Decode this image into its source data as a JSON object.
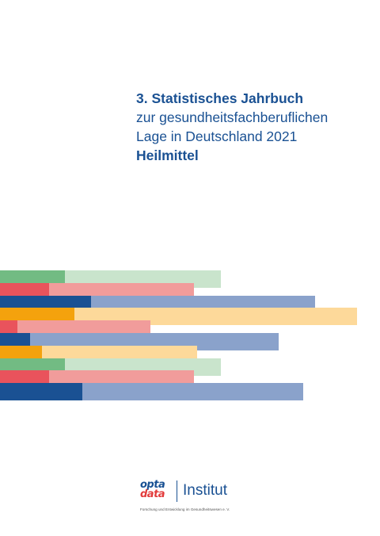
{
  "cover": {
    "title_line1": "3. Statistisches Jahrbuch",
    "title_line2": "zur gesundheitsfachberuflichen",
    "title_line3": "Lage in Deutschland 2021",
    "title_line4": "Heilmittel"
  },
  "logo": {
    "mark_top": "opta",
    "mark_bottom": "data",
    "name": "Institut",
    "tagline": "Forschung und Entwicklung im Gesundheitswesen e. V."
  },
  "colors": {
    "title": "#1a5193",
    "green_dark": "#72bb83",
    "green_light": "#c9e4cc",
    "red_dark": "#e9535c",
    "red_light": "#f19c9b",
    "blue_dark": "#1a5193",
    "blue_light": "#8aa2cb",
    "orange_dark": "#f4a20d",
    "orange_light": "#fdd99a"
  },
  "decor_bars": [
    {
      "dark": "#72bb83",
      "light": "#c9e4cc",
      "dark_end": 82,
      "light_end": 279
    },
    {
      "dark": "#e9535c",
      "light": "#f19c9b",
      "dark_end": 62,
      "light_end": 245
    },
    {
      "dark": "#1a5193",
      "light": "#8aa2cb",
      "dark_end": 115,
      "light_end": 398
    },
    {
      "dark": "#f4a20d",
      "light": "#fdd99a",
      "dark_end": 94,
      "light_end": 451
    },
    {
      "dark": "#e9535c",
      "light": "#f19c9b",
      "dark_end": 22,
      "light_end": 190
    },
    {
      "dark": "#1a5193",
      "light": "#8aa2cb",
      "dark_end": 38,
      "light_end": 352
    },
    {
      "dark": "#f4a20d",
      "light": "#fdd99a",
      "dark_end": 53,
      "light_end": 249
    },
    {
      "dark": "#72bb83",
      "light": "#c9e4cc",
      "dark_end": 82,
      "light_end": 279
    },
    {
      "dark": "#e9535c",
      "light": "#f19c9b",
      "dark_end": 62,
      "light_end": 245
    },
    {
      "dark": "#1a5193",
      "light": "#8aa2cb",
      "dark_end": 104,
      "light_end": 383
    }
  ]
}
